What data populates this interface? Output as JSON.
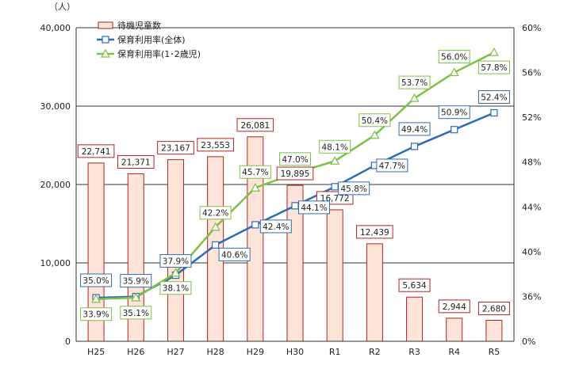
{
  "chart_data": {
    "type": "bar",
    "unit_left": "（人）",
    "categories": [
      "H25",
      "H26",
      "H27",
      "H28",
      "H29",
      "H30",
      "R1",
      "R2",
      "R3",
      "R4",
      "R5"
    ],
    "series": [
      {
        "name": "待機児童数",
        "kind": "bar",
        "axis": "left",
        "values": [
          22741,
          21371,
          23167,
          23553,
          26081,
          19895,
          16772,
          12439,
          5634,
          2944,
          2680
        ],
        "labels": [
          "22,741",
          "21,371",
          "23,167",
          "23,553",
          "26,081",
          "19,895",
          "16,772",
          "12,439",
          "5,634",
          "2,944",
          "2,680"
        ],
        "color": "#b22222",
        "fill": "#fde3d8"
      },
      {
        "name": "保育利用率(全体)",
        "kind": "line",
        "axis": "right",
        "marker": "square",
        "values": [
          35.0,
          35.9,
          37.9,
          40.6,
          42.4,
          44.1,
          45.8,
          47.7,
          49.4,
          50.9,
          52.4
        ],
        "labels": [
          "35.0%",
          "35.9%",
          "37.9%",
          "40.6%",
          "42.4%",
          "44.1%",
          "45.8%",
          "47.7%",
          "49.4%",
          "50.9%",
          "52.4%"
        ],
        "color": "#2e6db5"
      },
      {
        "name": "保育利用率(1･2歳児)",
        "kind": "line",
        "axis": "right",
        "marker": "triangle",
        "values": [
          33.9,
          35.1,
          38.1,
          42.2,
          45.7,
          47.0,
          48.1,
          50.4,
          53.7,
          56.0,
          57.8
        ],
        "labels": [
          "33.9%",
          "35.1%",
          "38.1%",
          "42.2%",
          "45.7%",
          "47.0%",
          "48.1%",
          "50.4%",
          "53.7%",
          "56.0%",
          "57.8%"
        ],
        "color": "#7cc142"
      }
    ],
    "y_left": {
      "min": 0,
      "max": 40000,
      "ticks": [
        "0",
        "10,000",
        "20,000",
        "30,000",
        "40,000"
      ]
    },
    "y_right": {
      "min": 0,
      "max": 60,
      "ticks": [
        "0%",
        "36%",
        "40%",
        "44%",
        "48%",
        "52%",
        "56%",
        "60%"
      ]
    },
    "grid": true,
    "legend": "top-left"
  }
}
